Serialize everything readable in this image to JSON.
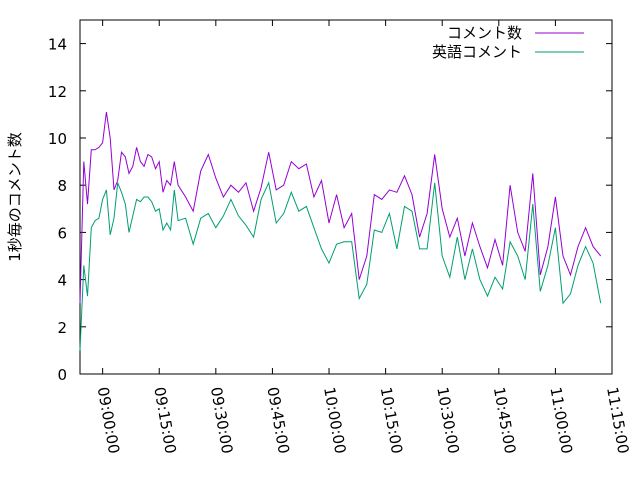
{
  "chart_data": {
    "type": "line",
    "title": "",
    "xlabel": "",
    "ylabel": "1秒毎のコメント数",
    "ylim": [
      0,
      15
    ],
    "yticks": [
      0,
      2,
      4,
      6,
      8,
      10,
      12,
      14
    ],
    "xlim": [
      "08:54:00",
      "11:15:00"
    ],
    "xticks": [
      "09:00:00",
      "09:15:00",
      "09:30:00",
      "09:45:00",
      "10:00:00",
      "10:15:00",
      "10:30:00",
      "10:45:00",
      "11:00:00",
      "11:15:00"
    ],
    "grid": false,
    "legend_position": "top-right",
    "x": [
      "08:54:00",
      "08:55:00",
      "08:56:00",
      "08:57:00",
      "08:58:00",
      "08:59:00",
      "09:00:00",
      "09:01:00",
      "09:02:00",
      "09:03:00",
      "09:04:00",
      "09:05:00",
      "09:06:00",
      "09:07:00",
      "09:08:00",
      "09:09:00",
      "09:10:00",
      "09:11:00",
      "09:12:00",
      "09:13:00",
      "09:14:00",
      "09:15:00",
      "09:16:00",
      "09:17:00",
      "09:18:00",
      "09:19:00",
      "09:20:00",
      "09:22:00",
      "09:24:00",
      "09:26:00",
      "09:28:00",
      "09:30:00",
      "09:32:00",
      "09:34:00",
      "09:36:00",
      "09:38:00",
      "09:40:00",
      "09:42:00",
      "09:44:00",
      "09:46:00",
      "09:48:00",
      "09:50:00",
      "09:52:00",
      "09:54:00",
      "09:56:00",
      "09:58:00",
      "10:00:00",
      "10:02:00",
      "10:04:00",
      "10:06:00",
      "10:08:00",
      "10:10:00",
      "10:12:00",
      "10:14:00",
      "10:16:00",
      "10:18:00",
      "10:20:00",
      "10:22:00",
      "10:24:00",
      "10:26:00",
      "10:28:00",
      "10:30:00",
      "10:32:00",
      "10:34:00",
      "10:36:00",
      "10:38:00",
      "10:40:00",
      "10:42:00",
      "10:44:00",
      "10:46:00",
      "10:48:00",
      "10:50:00",
      "10:52:00",
      "10:54:00",
      "10:56:00",
      "10:58:00",
      "11:00:00",
      "11:02:00",
      "11:04:00",
      "11:06:00",
      "11:08:00",
      "11:10:00",
      "11:12:00"
    ],
    "series": [
      {
        "name": "コメント数",
        "color": "#9400d3",
        "values": [
          3.0,
          9.0,
          7.2,
          9.5,
          9.5,
          9.6,
          9.8,
          11.1,
          10.0,
          7.8,
          8.2,
          9.4,
          9.2,
          8.5,
          8.8,
          9.6,
          9.0,
          8.8,
          9.3,
          9.2,
          8.7,
          9.0,
          7.7,
          8.2,
          8.0,
          9.0,
          8.0,
          7.5,
          6.9,
          8.6,
          9.3,
          8.3,
          7.5,
          8.0,
          7.7,
          8.1,
          6.9,
          7.9,
          9.4,
          7.8,
          8.0,
          9.0,
          8.7,
          8.9,
          7.5,
          8.2,
          6.4,
          7.6,
          6.2,
          6.8,
          4.0,
          5.0,
          7.6,
          7.4,
          7.8,
          7.7,
          8.4,
          7.6,
          5.8,
          6.8,
          9.3,
          7.0,
          5.8,
          6.6,
          5.0,
          6.4,
          5.4,
          4.5,
          5.7,
          4.6,
          8.0,
          6.0,
          5.2,
          8.5,
          4.2,
          5.4,
          7.5,
          5.0,
          4.2,
          5.4,
          6.2,
          5.4,
          5.0
        ]
      },
      {
        "name": "英語コメント",
        "color": "#009e73",
        "values": [
          1.0,
          4.6,
          3.3,
          6.2,
          6.5,
          6.6,
          7.4,
          7.8,
          5.9,
          6.6,
          8.1,
          7.7,
          7.2,
          6.0,
          6.7,
          7.4,
          7.3,
          7.5,
          7.5,
          7.3,
          6.9,
          7.0,
          6.1,
          6.4,
          6.1,
          7.8,
          6.5,
          6.6,
          5.5,
          6.6,
          6.8,
          6.2,
          6.7,
          7.4,
          6.7,
          6.3,
          5.8,
          7.4,
          8.1,
          6.4,
          6.8,
          7.7,
          6.9,
          7.1,
          6.2,
          5.3,
          4.7,
          5.5,
          5.6,
          5.6,
          3.2,
          3.8,
          6.1,
          6.0,
          6.8,
          5.3,
          7.1,
          6.9,
          5.3,
          5.3,
          8.1,
          5.0,
          4.1,
          5.8,
          4.0,
          5.3,
          4.0,
          3.3,
          4.1,
          3.6,
          5.6,
          5.0,
          4.0,
          7.2,
          3.5,
          4.6,
          6.2,
          3.0,
          3.4,
          4.6,
          5.4,
          4.7,
          3.0
        ]
      }
    ]
  }
}
